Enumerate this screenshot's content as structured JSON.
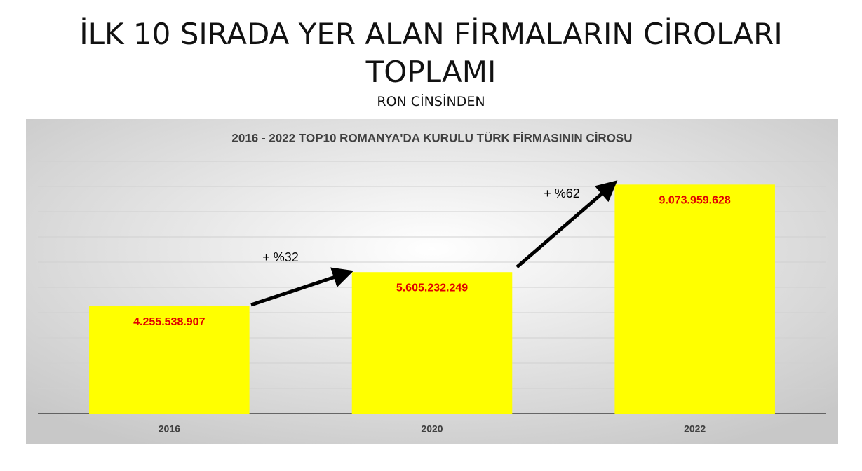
{
  "header": {
    "title": "İLK 10 SIRADA YER ALAN FİRMALARIN CİROLARI TOPLAMI",
    "subtitle": "RON CİNSİNDEN"
  },
  "chart_data": {
    "type": "bar",
    "title": "2016 - 2022 TOP10 ROMANYA'DA KURULU TÜRK FİRMASININ CİROSU",
    "categories": [
      "2016",
      "2020",
      "2022"
    ],
    "values": [
      4255538907,
      5605232249,
      9073959628
    ],
    "value_labels": [
      "4.255.538.907",
      "5.605.232.249",
      "9.073.959.628"
    ],
    "color": "#ffff00",
    "label_color": "#e00000",
    "ylim": [
      0,
      10000000000
    ],
    "yticks": [
      0,
      1000000000,
      2000000000,
      3000000000,
      4000000000,
      5000000000,
      6000000000,
      7000000000,
      8000000000,
      9000000000,
      10000000000
    ],
    "grid": true,
    "annotations": [
      "+ %32",
      "+ %62"
    ]
  }
}
